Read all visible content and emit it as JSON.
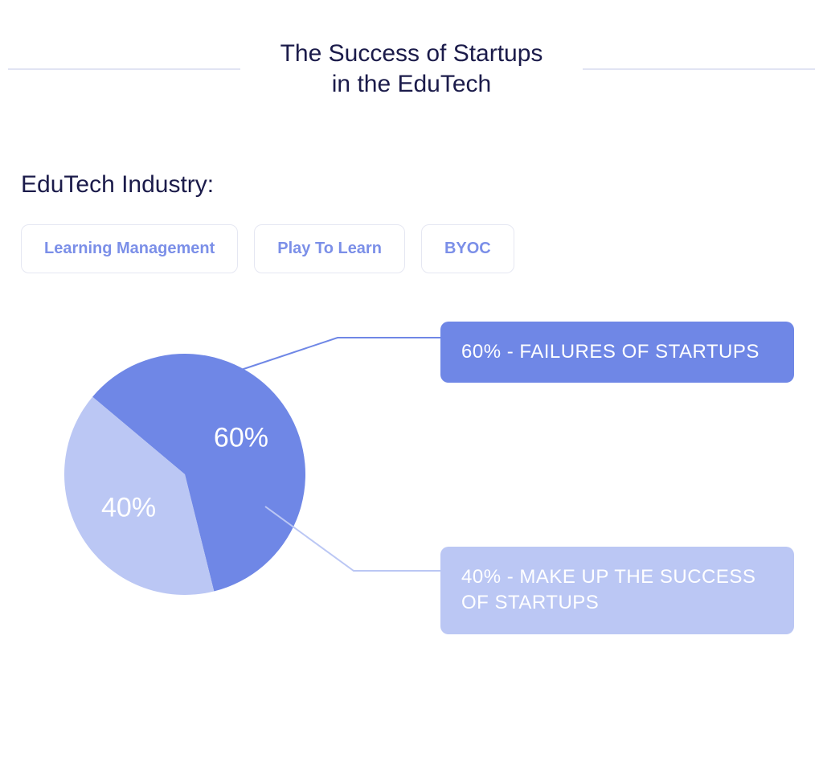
{
  "title": "The Success of Startups\nin the EduTech",
  "subtitle": "EduTech Industry:",
  "tabs": [
    {
      "label": "Learning Management"
    },
    {
      "label": "Play To Learn"
    },
    {
      "label": "BYOC"
    }
  ],
  "chart": {
    "type": "pie",
    "background_color": "#ffffff",
    "rule_color": "#e1e4f3",
    "slices": [
      {
        "value": 60,
        "label_in_pie": "60%",
        "color": "#6f87e6",
        "callout_text": "60% - FAILURES OF STARTUPS",
        "callout_bg": "#6f87e6",
        "callout_text_color": "#ffffff"
      },
      {
        "value": 40,
        "label_in_pie": "40%",
        "color": "#bbc7f4",
        "callout_text": "40% - MAKE UP THE SUCCESS OF STARTUPS",
        "callout_bg": "#bbc7f4",
        "callout_text_color": "#ffffff"
      }
    ],
    "pie_label_fontsize": 34,
    "pie_label_color": "#ffffff",
    "pie_radius": 150,
    "connector_color_1": "#6f87e6",
    "connector_color_2": "#bbc7f4",
    "tab_border_color": "#e5e7f2",
    "tab_text_color": "#7b8fe8",
    "title_color": "#1b1b4a"
  }
}
